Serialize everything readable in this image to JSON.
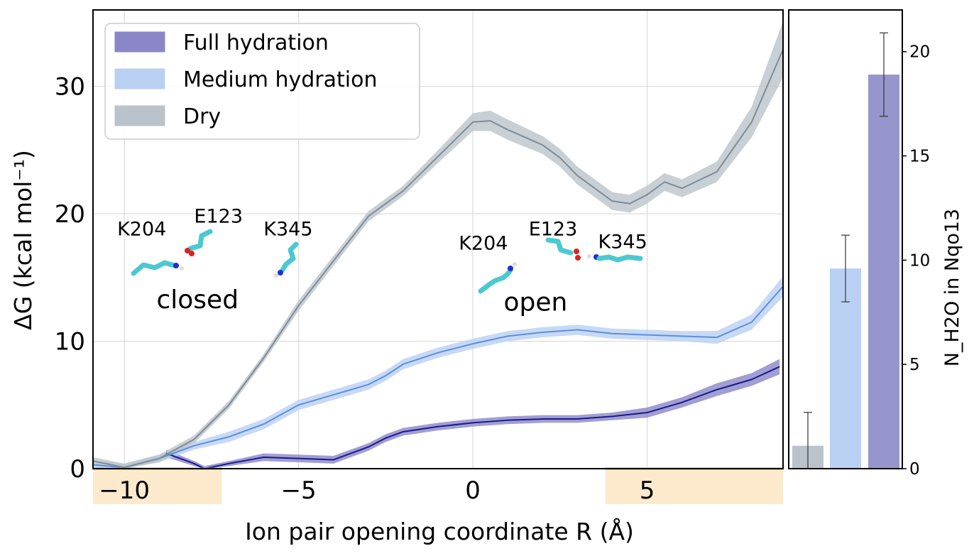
{
  "chart_data": [
    {
      "type": "area",
      "title": "",
      "xlabel": "Ion pair opening coordinate R (Å)",
      "ylabel": "ΔG (kcal mol⁻¹)",
      "xlim": [
        -10.9,
        8.9
      ],
      "ylim": [
        0,
        36
      ],
      "x_ticks": [
        "−10",
        "−5",
        "0",
        "5"
      ],
      "x_tick_values": [
        -10,
        -5,
        0,
        5
      ],
      "y_ticks": [
        "0",
        "10",
        "20",
        "30"
      ],
      "y_tick_values": [
        0,
        10,
        20,
        30
      ],
      "grid": true,
      "legend_position": "top-left",
      "highlight_ranges": [
        [
          -10.9,
          -7.2
        ],
        [
          3.8,
          8.9
        ]
      ],
      "highlight_color": "#fdeacc",
      "highlight_line_color": "#f5a623",
      "series": [
        {
          "name": "Full hydration",
          "color": "#1a1a8c",
          "band_color": "#8a86c8",
          "x": [
            -8.8,
            -8.0,
            -7.7,
            -7.0,
            -6.0,
            -5.0,
            -4.0,
            -3.5,
            -3.0,
            -2.5,
            -2.0,
            -1.0,
            0.0,
            1.0,
            2.0,
            3.0,
            4.0,
            5.0,
            6.0,
            7.0,
            8.0,
            8.8
          ],
          "y": [
            1.2,
            0.4,
            0.0,
            0.4,
            0.9,
            0.8,
            0.7,
            1.2,
            1.7,
            2.4,
            2.9,
            3.3,
            3.6,
            3.8,
            3.9,
            3.9,
            4.1,
            4.4,
            5.2,
            6.2,
            7.0,
            8.0
          ],
          "err": [
            0.3,
            0.2,
            0.2,
            0.2,
            0.3,
            0.3,
            0.3,
            0.3,
            0.3,
            0.3,
            0.3,
            0.3,
            0.3,
            0.3,
            0.3,
            0.3,
            0.3,
            0.4,
            0.4,
            0.5,
            0.5,
            0.6
          ]
        },
        {
          "name": "Medium hydration",
          "color": "#5b8fe0",
          "band_color": "#b9d0f3",
          "x": [
            -10.9,
            -10.0,
            -9.0,
            -8.0,
            -7.0,
            -6.0,
            -5.0,
            -4.0,
            -3.0,
            -2.5,
            -2.0,
            -1.0,
            0.0,
            1.0,
            2.0,
            3.0,
            4.0,
            5.0,
            6.0,
            7.0,
            8.0,
            8.9
          ],
          "y": [
            0.3,
            0.1,
            0.8,
            1.8,
            2.5,
            3.5,
            5.0,
            5.8,
            6.6,
            7.3,
            8.2,
            9.1,
            9.8,
            10.4,
            10.7,
            10.9,
            10.6,
            10.5,
            10.4,
            10.3,
            11.5,
            14.3
          ],
          "err": [
            0.3,
            0.3,
            0.3,
            0.3,
            0.4,
            0.4,
            0.4,
            0.4,
            0.4,
            0.4,
            0.4,
            0.4,
            0.4,
            0.4,
            0.4,
            0.4,
            0.4,
            0.4,
            0.4,
            0.5,
            0.6,
            0.8
          ]
        },
        {
          "name": "Dry",
          "color": "#7f8c99",
          "band_color": "#bac3cb",
          "x": [
            -10.9,
            -10.0,
            -9.0,
            -8.0,
            -7.0,
            -6.0,
            -5.0,
            -4.0,
            -3.0,
            -2.0,
            -1.0,
            0.0,
            0.5,
            1.0,
            2.0,
            2.5,
            3.0,
            4.0,
            4.5,
            5.0,
            5.5,
            6.0,
            7.0,
            8.0,
            8.9
          ],
          "y": [
            0.6,
            0.1,
            0.8,
            2.3,
            5.0,
            8.7,
            12.8,
            16.3,
            19.8,
            21.8,
            24.5,
            27.2,
            27.3,
            26.6,
            25.4,
            24.4,
            23.0,
            21.0,
            20.8,
            21.5,
            22.5,
            22.0,
            23.3,
            27.2,
            32.9
          ],
          "err": [
            0.3,
            0.3,
            0.3,
            0.3,
            0.3,
            0.3,
            0.4,
            0.4,
            0.4,
            0.4,
            0.5,
            0.7,
            0.8,
            0.8,
            0.7,
            0.7,
            0.7,
            0.7,
            0.7,
            0.7,
            0.7,
            0.7,
            0.8,
            1.2,
            2.2
          ]
        }
      ],
      "annotations": [
        {
          "text": "K204",
          "x": -9.5,
          "y": 18.3
        },
        {
          "text": "E123",
          "x": -7.3,
          "y": 19.3
        },
        {
          "text": "K345",
          "x": -5.3,
          "y": 18.3
        },
        {
          "text": "closed",
          "x": -7.9,
          "y": 12.6
        },
        {
          "text": "K204",
          "x": 0.3,
          "y": 17.2
        },
        {
          "text": "E123",
          "x": 2.3,
          "y": 18.3
        },
        {
          "text": "K345",
          "x": 4.3,
          "y": 17.3
        },
        {
          "text": "open",
          "x": 1.8,
          "y": 12.4
        }
      ]
    },
    {
      "type": "bar",
      "title": "",
      "xlabel": "",
      "ylabel": "N_H2O in Nqo13",
      "ylim": [
        0,
        22
      ],
      "y_ticks": [
        "0",
        "5",
        "10",
        "15",
        "20"
      ],
      "y_tick_values": [
        0,
        5,
        10,
        15,
        20
      ],
      "categories": [
        "Dry",
        "Medium hydration",
        "Full hydration"
      ],
      "values": [
        1.1,
        9.6,
        18.9
      ],
      "errors": [
        1.6,
        1.6,
        2.0
      ],
      "colors": [
        "#bac3cb",
        "#b9d0f3",
        "#9796cc"
      ]
    }
  ]
}
